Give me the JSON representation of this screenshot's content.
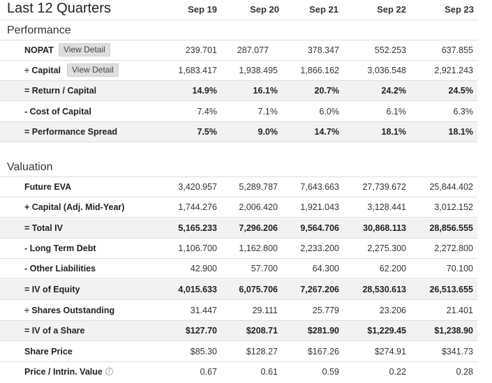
{
  "title": "Last 12 Quarters",
  "columns": [
    "Sep 19",
    "Sep 20",
    "Sep 21",
    "Sep 22",
    "Sep 23"
  ],
  "performance": {
    "heading": "Performance",
    "rows": [
      {
        "label": "NOPAT",
        "button": "View Detail",
        "values": [
          "239.701",
          "287.077",
          "378.347",
          "552.253",
          "637.855"
        ]
      },
      {
        "label": "÷ Capital",
        "button": "View Detail",
        "values": [
          "1,683.417",
          "1,938.495",
          "1,866.162",
          "3,036.548",
          "2,921.243"
        ]
      },
      {
        "label": "= Return / Capital",
        "values": [
          "14.9%",
          "16.1%",
          "20.7%",
          "24.2%",
          "24.5%"
        ]
      },
      {
        "label": "- Cost of Capital",
        "values": [
          "7.4%",
          "7.1%",
          "6.0%",
          "6.1%",
          "6.3%"
        ]
      },
      {
        "label": "= Performance Spread",
        "values": [
          "7.5%",
          "9.0%",
          "14.7%",
          "18.1%",
          "18.1%"
        ]
      }
    ]
  },
  "valuation": {
    "heading": "Valuation",
    "rows": [
      {
        "label": "Future EVA",
        "values": [
          "3,420.957",
          "5,289.787",
          "7,643.663",
          "27,739.672",
          "25,844.402"
        ]
      },
      {
        "label": "+ Capital (Adj. Mid-Year)",
        "values": [
          "1,744.276",
          "2,006.420",
          "1,921.043",
          "3,128.441",
          "3,012.152"
        ]
      },
      {
        "label": "= Total IV",
        "values": [
          "5,165.233",
          "7,296.206",
          "9,564.706",
          "30,868.113",
          "28,856.555"
        ]
      },
      {
        "label": "- Long Term Debt",
        "values": [
          "1,106.700",
          "1,162.800",
          "2,233.200",
          "2,275.300",
          "2,272.800"
        ]
      },
      {
        "label": "- Other Liabilities",
        "values": [
          "42.900",
          "57.700",
          "64.300",
          "62.200",
          "70.100"
        ]
      },
      {
        "label": "= IV of Equity",
        "values": [
          "4,015.633",
          "6,075.706",
          "7,267.206",
          "28,530.613",
          "26,513.655"
        ]
      },
      {
        "label": "÷ Shares Outstanding",
        "values": [
          "31.447",
          "29.111",
          "25.779",
          "23.206",
          "21.401"
        ]
      },
      {
        "label": "= IV of a Share",
        "values": [
          "$127.70",
          "$208.71",
          "$281.90",
          "$1,229.45",
          "$1,238.90"
        ]
      },
      {
        "label": "Share Price",
        "values": [
          "$85.30",
          "$128.27",
          "$167.26",
          "$274.91",
          "$341.73"
        ]
      },
      {
        "label": "Price / Intrin. Value",
        "info_icon": "info-icon",
        "values": [
          "0.67",
          "0.61",
          "0.59",
          "0.22",
          "0.28"
        ]
      }
    ]
  }
}
